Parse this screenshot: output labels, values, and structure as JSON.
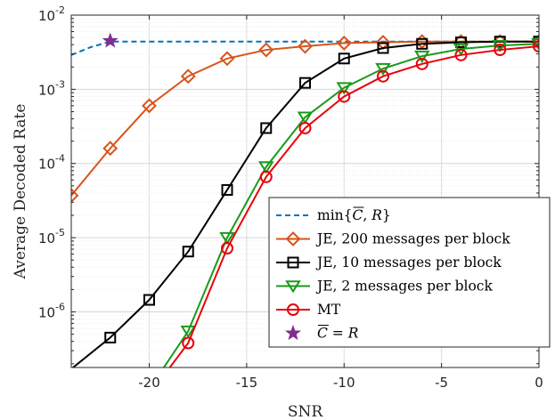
{
  "chart_data": {
    "type": "line",
    "xlabel": "SNR",
    "ylabel": "Average Decoded Rate",
    "xlim": [
      -24,
      0
    ],
    "ylim_log10": [
      -6.75,
      -2
    ],
    "y_scale": "log",
    "grid": true,
    "minor_grid": true,
    "legend_position": "bottom-right",
    "x_ticks": [
      "-20",
      "-15",
      "-10",
      "-5",
      "0"
    ],
    "x_tick_values": [
      -20,
      -15,
      -10,
      -5,
      0
    ],
    "y_ticks": [
      {
        "base": "10",
        "exp": "-6",
        "value": 1e-06
      },
      {
        "base": "10",
        "exp": "-5",
        "value": 1e-05
      },
      {
        "base": "10",
        "exp": "-4",
        "value": 0.0001
      },
      {
        "base": "10",
        "exp": "-3",
        "value": 0.001
      },
      {
        "base": "10",
        "exp": "-2",
        "value": 0.01
      }
    ],
    "series": [
      {
        "key": "cap",
        "legend_parts": [
          "min{",
          "C",
          ", ",
          "R",
          "}"
        ],
        "color": "#0072BD",
        "dashed": true,
        "marker": "none",
        "x": [
          -24,
          -23,
          -22,
          -20,
          -18,
          -16,
          -14,
          -12,
          -10,
          -8,
          -6,
          -4,
          -2,
          0
        ],
        "y": [
          0.0029,
          0.0037,
          0.0044,
          0.0044,
          0.0044,
          0.0044,
          0.0044,
          0.0044,
          0.0044,
          0.0044,
          0.0044,
          0.0044,
          0.0044,
          0.0044
        ]
      },
      {
        "key": "je200",
        "legend": "JE, 200 messages per block",
        "color": "#D95319",
        "marker": "diamond",
        "x": [
          -24,
          -22,
          -20,
          -18,
          -16,
          -14,
          -12,
          -10,
          -8,
          -6,
          -4,
          -2,
          0
        ],
        "y": [
          3.7e-05,
          0.00016,
          0.0006,
          0.0015,
          0.0026,
          0.0034,
          0.0038,
          0.0042,
          0.0043,
          0.0044,
          0.0044,
          0.0044,
          0.0044
        ]
      },
      {
        "key": "je10",
        "legend": "JE, 10 messages per block",
        "color": "#000000",
        "marker": "square",
        "x": [
          -24,
          -22,
          -20,
          -18,
          -16,
          -14,
          -12,
          -10,
          -8,
          -6,
          -4,
          -2,
          0
        ],
        "y": [
          1.7e-07,
          4.5e-07,
          1.45e-06,
          6.5e-06,
          4.4e-05,
          0.0003,
          0.00122,
          0.0026,
          0.0036,
          0.0041,
          0.0043,
          0.0044,
          0.0044
        ]
      },
      {
        "key": "je2",
        "legend": "JE, 2 messages per block",
        "color": "#1A9A1A",
        "marker": "triangle-down",
        "x": [
          -19.3,
          -18,
          -16,
          -14,
          -12,
          -10,
          -8,
          -6,
          -4,
          -2,
          0
        ],
        "y": [
          1.7e-07,
          5.5e-07,
          1e-05,
          9e-05,
          0.00042,
          0.00105,
          0.0019,
          0.0028,
          0.0035,
          0.0039,
          0.0041
        ]
      },
      {
        "key": "mt",
        "legend": "MT",
        "color": "#E8000B",
        "marker": "circle",
        "x": [
          -19,
          -18,
          -16,
          -14,
          -12,
          -10,
          -8,
          -6,
          -4,
          -2,
          0
        ],
        "y": [
          1.7e-07,
          3.8e-07,
          7.2e-06,
          6.6e-05,
          0.0003,
          0.0008,
          0.0015,
          0.0022,
          0.0029,
          0.0034,
          0.0038
        ]
      },
      {
        "key": "star",
        "legend_parts": [
          "C",
          " = ",
          "R"
        ],
        "color": "#7E2F8E",
        "marker": "star",
        "line": false,
        "x": [
          -22
        ],
        "y": [
          0.0045
        ]
      }
    ]
  }
}
